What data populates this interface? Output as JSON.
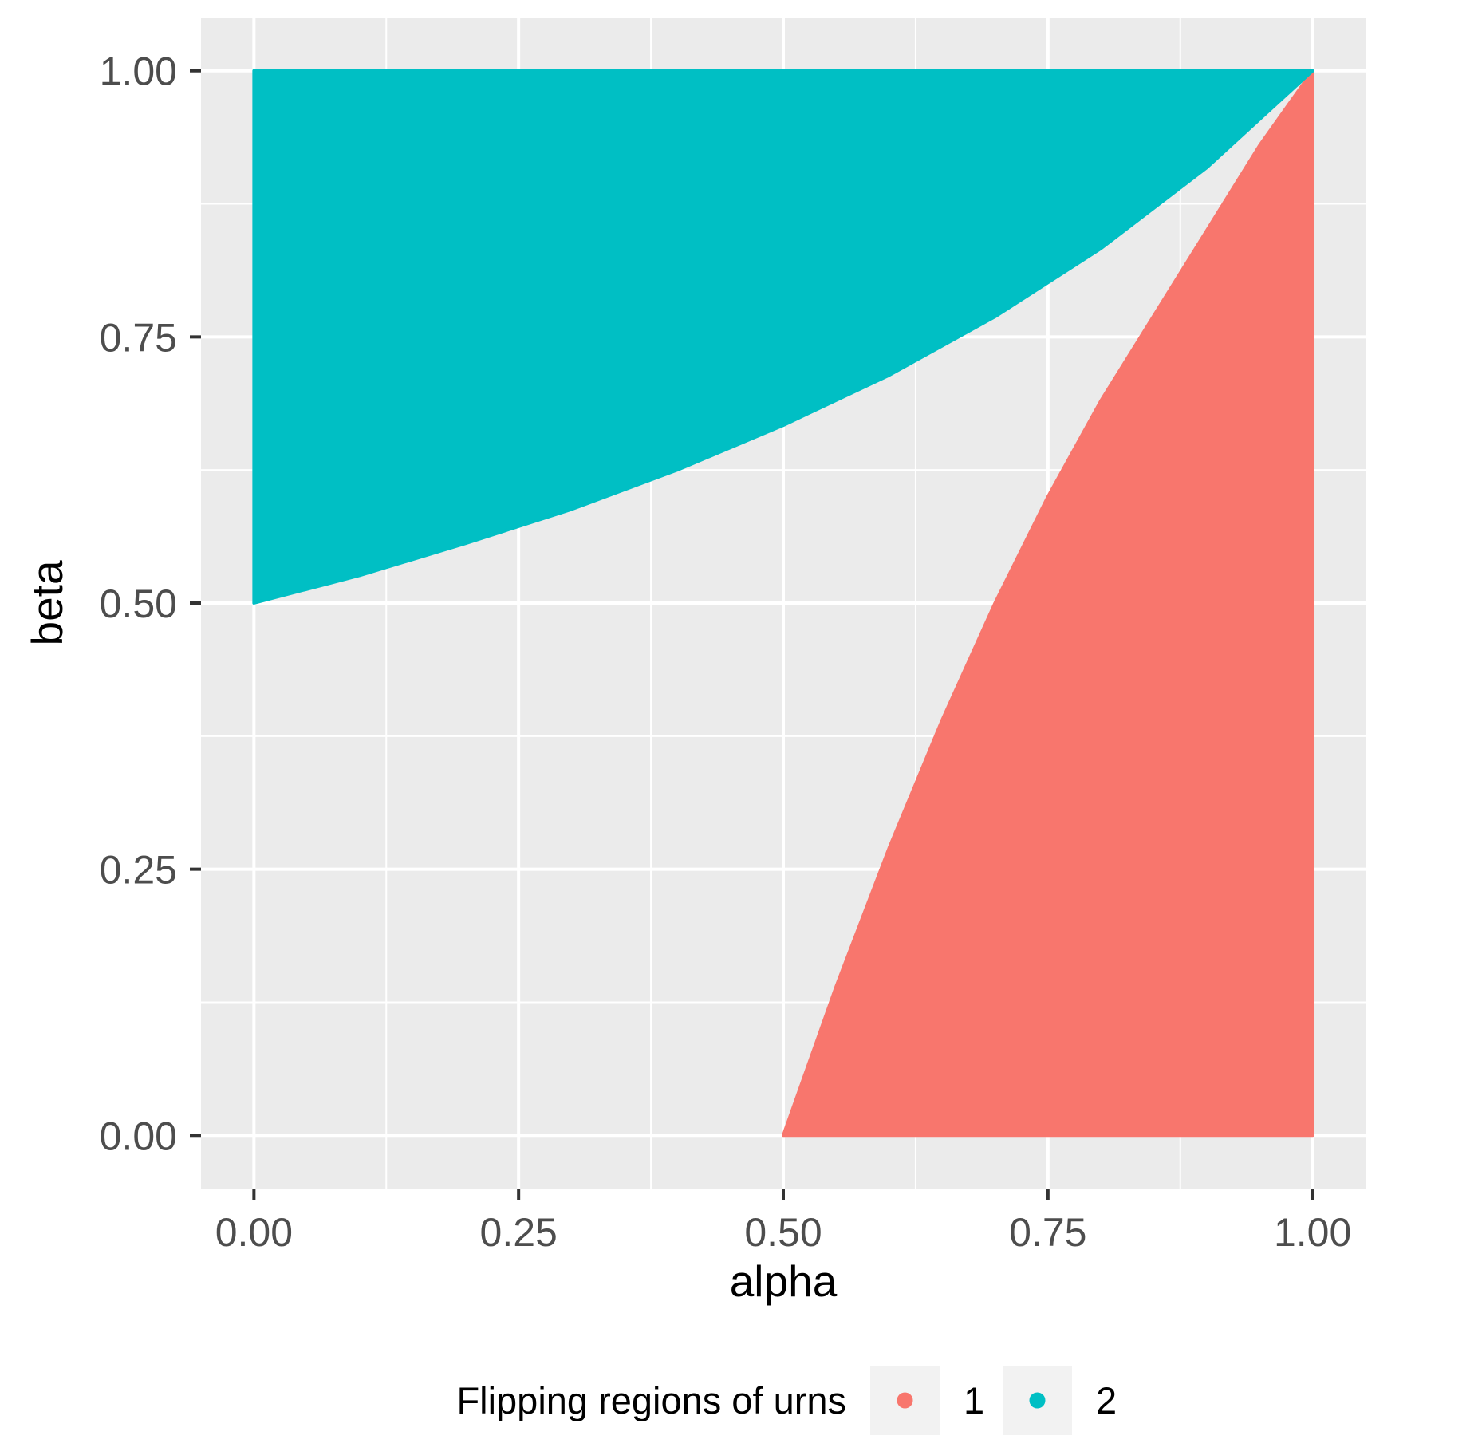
{
  "chart_data": {
    "type": "scatter",
    "xlabel": "alpha",
    "ylabel": "beta",
    "xlim": [
      -0.05,
      1.05
    ],
    "ylim": [
      -0.05,
      1.05
    ],
    "x_ticks": [
      "0.00",
      "0.25",
      "0.50",
      "0.75",
      "1.00"
    ],
    "y_ticks": [
      "0.00",
      "0.25",
      "0.50",
      "0.75",
      "1.00"
    ],
    "x_tick_values": [
      0,
      0.25,
      0.5,
      0.75,
      1.0
    ],
    "y_tick_values": [
      0,
      0.25,
      0.5,
      0.75,
      1.0
    ],
    "grid": true,
    "legend": {
      "title": "Flipping regions of urns",
      "position": "bottom",
      "entries": [
        {
          "label": "1",
          "color": "#F8766D"
        },
        {
          "label": "2",
          "color": "#00BFC4"
        }
      ]
    },
    "series": [
      {
        "name": "1",
        "color": "#F8766D",
        "region": "filled area between beta = 0 and the lower boundary curve, for alpha from 0.50 to 1.00",
        "boundary": [
          {
            "alpha": 0.5,
            "beta": 0.0
          },
          {
            "alpha": 0.55,
            "beta": 0.14
          },
          {
            "alpha": 0.6,
            "beta": 0.27
          },
          {
            "alpha": 0.65,
            "beta": 0.39
          },
          {
            "alpha": 0.7,
            "beta": 0.5
          },
          {
            "alpha": 0.75,
            "beta": 0.6
          },
          {
            "alpha": 0.8,
            "beta": 0.69
          },
          {
            "alpha": 0.85,
            "beta": 0.77
          },
          {
            "alpha": 0.9,
            "beta": 0.85
          },
          {
            "alpha": 0.95,
            "beta": 0.93
          },
          {
            "alpha": 1.0,
            "beta": 1.0
          }
        ]
      },
      {
        "name": "2",
        "color": "#00BFC4",
        "region": "filled area between the upper boundary curve and beta = 1, for alpha from 0.00 to 1.00",
        "boundary": [
          {
            "alpha": 0.0,
            "beta": 0.5
          },
          {
            "alpha": 0.1,
            "beta": 0.526
          },
          {
            "alpha": 0.2,
            "beta": 0.556
          },
          {
            "alpha": 0.3,
            "beta": 0.588
          },
          {
            "alpha": 0.4,
            "beta": 0.625
          },
          {
            "alpha": 0.5,
            "beta": 0.667
          },
          {
            "alpha": 0.6,
            "beta": 0.714
          },
          {
            "alpha": 0.7,
            "beta": 0.769
          },
          {
            "alpha": 0.8,
            "beta": 0.833
          },
          {
            "alpha": 0.9,
            "beta": 0.909
          },
          {
            "alpha": 1.0,
            "beta": 1.0
          }
        ]
      }
    ]
  }
}
